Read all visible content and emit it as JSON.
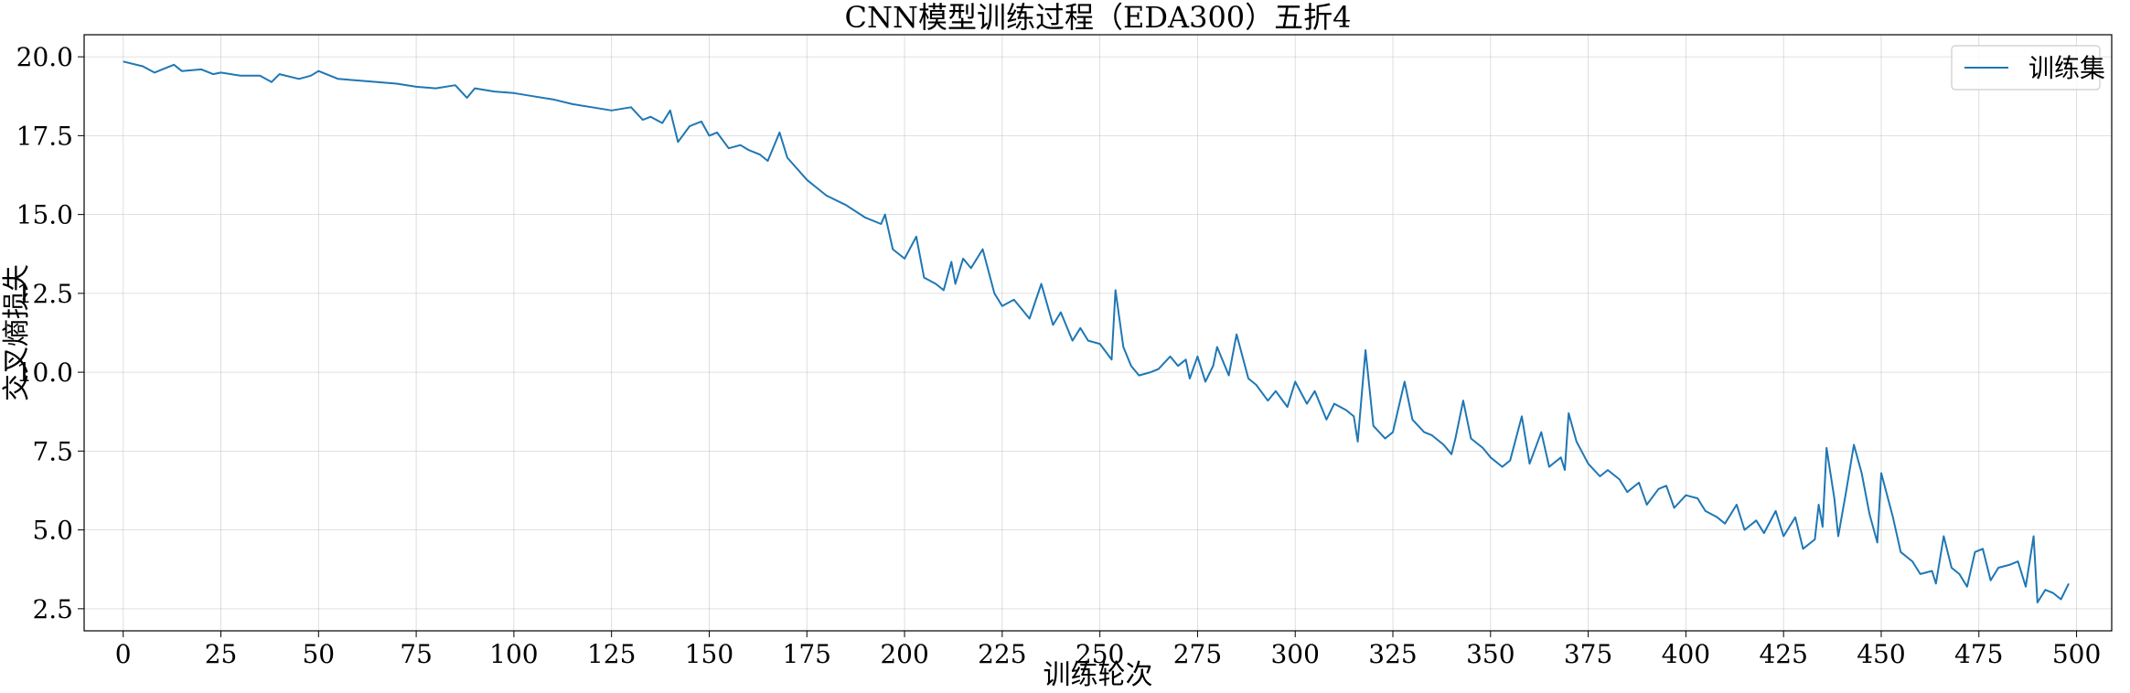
{
  "chart_data": {
    "type": "line",
    "title": "CNN模型训练过程（EDA300）五折4",
    "xlabel": "训练轮次",
    "ylabel": "交叉熵损失",
    "xlim": [
      -10,
      509
    ],
    "ylim": [
      1.8,
      20.7
    ],
    "xticks": [
      0,
      25,
      50,
      75,
      100,
      125,
      150,
      175,
      200,
      225,
      250,
      275,
      300,
      325,
      350,
      375,
      400,
      425,
      450,
      475,
      500
    ],
    "yticks": [
      2.5,
      5.0,
      7.5,
      10.0,
      12.5,
      15.0,
      17.5,
      20.0
    ],
    "xtick_labels": [
      "0",
      "25",
      "50",
      "75",
      "100",
      "125",
      "150",
      "175",
      "200",
      "225",
      "250",
      "275",
      "300",
      "325",
      "350",
      "375",
      "400",
      "425",
      "450",
      "475",
      "500"
    ],
    "ytick_labels": [
      "2.5",
      "5.0",
      "7.5",
      "10.0",
      "12.5",
      "15.0",
      "17.5",
      "20.0"
    ],
    "grid": true,
    "legend": {
      "position": "top-right",
      "entries": [
        "训练集"
      ]
    },
    "series": [
      {
        "name": "训练集",
        "color": "#1f77b4",
        "x": [
          0,
          5,
          8,
          10,
          13,
          15,
          20,
          23,
          25,
          30,
          35,
          38,
          40,
          45,
          48,
          50,
          55,
          60,
          65,
          70,
          75,
          80,
          85,
          88,
          90,
          95,
          100,
          105,
          110,
          115,
          120,
          125,
          130,
          133,
          135,
          138,
          140,
          142,
          145,
          148,
          150,
          152,
          155,
          158,
          160,
          163,
          165,
          168,
          170,
          175,
          180,
          185,
          190,
          194,
          195,
          197,
          200,
          203,
          205,
          208,
          210,
          212,
          213,
          215,
          217,
          220,
          223,
          225,
          228,
          230,
          232,
          235,
          238,
          240,
          243,
          245,
          247,
          250,
          253,
          254,
          256,
          258,
          260,
          263,
          265,
          268,
          270,
          272,
          273,
          275,
          277,
          279,
          280,
          283,
          285,
          288,
          290,
          293,
          295,
          298,
          300,
          303,
          305,
          308,
          310,
          313,
          315,
          316,
          318,
          320,
          323,
          325,
          328,
          330,
          333,
          335,
          338,
          340,
          341,
          343,
          345,
          348,
          350,
          353,
          355,
          358,
          360,
          363,
          365,
          368,
          369,
          370,
          372,
          375,
          378,
          380,
          383,
          385,
          388,
          390,
          393,
          395,
          397,
          400,
          403,
          405,
          408,
          410,
          413,
          415,
          418,
          420,
          423,
          425,
          428,
          430,
          433,
          434,
          435,
          436,
          438,
          439,
          441,
          443,
          445,
          447,
          449,
          450,
          453,
          455,
          458,
          460,
          463,
          464,
          466,
          468,
          470,
          472,
          474,
          476,
          478,
          480,
          483,
          485,
          487,
          489,
          490,
          492,
          494,
          496,
          498
        ],
        "y": [
          19.85,
          19.7,
          19.5,
          19.6,
          19.75,
          19.55,
          19.6,
          19.45,
          19.5,
          19.4,
          19.4,
          19.2,
          19.45,
          19.3,
          19.4,
          19.55,
          19.3,
          19.25,
          19.2,
          19.15,
          19.05,
          19.0,
          19.1,
          18.7,
          19.0,
          18.9,
          18.85,
          18.75,
          18.65,
          18.5,
          18.4,
          18.3,
          18.4,
          18.0,
          18.1,
          17.9,
          18.3,
          17.3,
          17.8,
          17.95,
          17.5,
          17.6,
          17.1,
          17.2,
          17.05,
          16.9,
          16.7,
          17.6,
          16.8,
          16.1,
          15.6,
          15.3,
          14.9,
          14.7,
          15.0,
          13.9,
          13.6,
          14.3,
          13.0,
          12.8,
          12.6,
          13.5,
          12.8,
          13.6,
          13.3,
          13.9,
          12.5,
          12.1,
          12.3,
          12.0,
          11.7,
          12.8,
          11.5,
          11.9,
          11.0,
          11.4,
          11.0,
          10.9,
          10.4,
          12.6,
          10.8,
          10.2,
          9.9,
          10.0,
          10.1,
          10.5,
          10.2,
          10.4,
          9.8,
          10.5,
          9.7,
          10.2,
          10.8,
          9.9,
          11.2,
          9.8,
          9.6,
          9.1,
          9.4,
          8.9,
          9.7,
          9.0,
          9.4,
          8.5,
          9.0,
          8.8,
          8.6,
          7.8,
          10.7,
          8.3,
          7.9,
          8.1,
          9.7,
          8.5,
          8.1,
          8.0,
          7.7,
          7.4,
          7.9,
          9.1,
          7.9,
          7.6,
          7.3,
          7.0,
          7.2,
          8.6,
          7.1,
          8.1,
          7.0,
          7.3,
          6.9,
          8.7,
          7.8,
          7.1,
          6.7,
          6.9,
          6.6,
          6.2,
          6.5,
          5.8,
          6.3,
          6.4,
          5.7,
          6.1,
          6.0,
          5.6,
          5.4,
          5.2,
          5.8,
          5.0,
          5.3,
          4.9,
          5.6,
          4.8,
          5.4,
          4.4,
          4.7,
          5.8,
          5.1,
          7.6,
          6.0,
          4.8,
          6.2,
          7.7,
          6.8,
          5.5,
          4.6,
          6.8,
          5.4,
          4.3,
          4.0,
          3.6,
          3.7,
          3.3,
          4.8,
          3.8,
          3.6,
          3.2,
          4.3,
          4.4,
          3.4,
          3.8,
          3.9,
          4.0,
          3.2,
          4.8,
          2.7,
          3.1,
          3.0,
          2.8,
          3.3
        ]
      }
    ]
  }
}
